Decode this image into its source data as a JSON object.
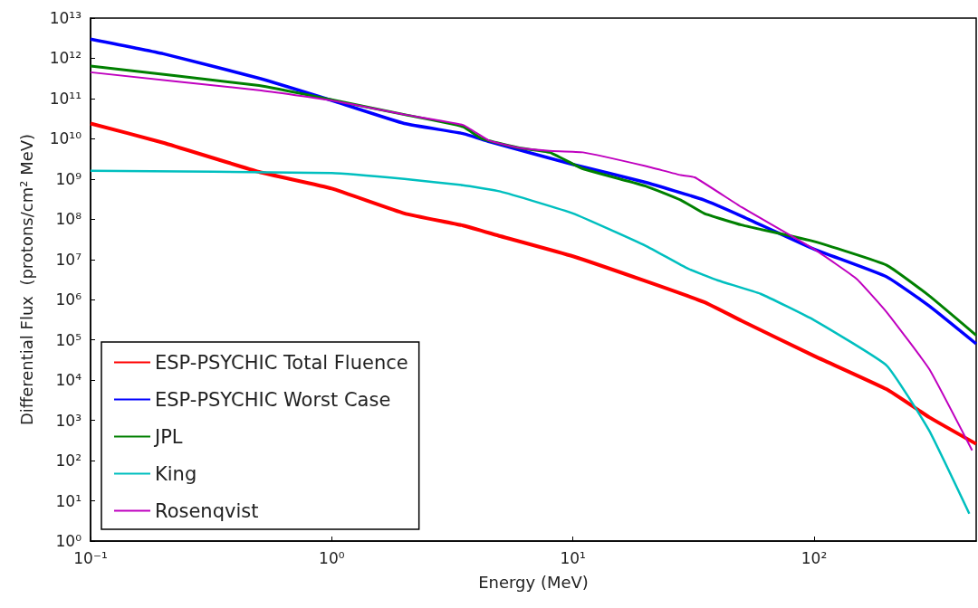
{
  "chart_data": {
    "type": "line",
    "xlabel": "Energy (MeV)",
    "ylabel": "Differential Flux  (protons/cm² MeV)",
    "log": "xy",
    "grid": false,
    "legend": "bottom left",
    "line_style": "solid",
    "xlim": [
      0.1,
      470
    ],
    "xticks": [
      {
        "value": 0.1,
        "label": "10⁻¹"
      },
      {
        "value": 1,
        "label": "10⁰"
      },
      {
        "value": 10,
        "label": "10¹"
      },
      {
        "value": 100,
        "label": "10²"
      }
    ],
    "ylim": [
      1,
      10000000000000.0
    ],
    "yticks": [
      {
        "value": 1,
        "label": "10⁰"
      },
      {
        "value": 10,
        "label": "10¹"
      },
      {
        "value": 100,
        "label": "10²"
      },
      {
        "value": 1000,
        "label": "10³"
      },
      {
        "value": 10000,
        "label": "10⁴"
      },
      {
        "value": 100000,
        "label": "10⁵"
      },
      {
        "value": 1000000,
        "label": "10⁶"
      },
      {
        "value": 10000000,
        "label": "10⁷"
      },
      {
        "value": 100000000,
        "label": "10⁸"
      },
      {
        "value": 1000000000,
        "label": "10⁹"
      },
      {
        "value": 10000000000,
        "label": "10¹⁰"
      },
      {
        "value": 100000000000,
        "label": "10¹¹"
      },
      {
        "value": 1000000000000,
        "label": "10¹²"
      },
      {
        "value": 10000000000000,
        "label": "10¹³"
      }
    ],
    "series": [
      {
        "name": "ESP-PSYCHIC Total Fluence",
        "color": "#ff0000",
        "x": [
          0.1,
          0.2,
          0.5,
          1,
          2,
          3.5,
          5,
          10,
          20,
          35,
          50,
          100,
          200,
          300,
          470
        ],
        "values": [
          24000000000.0,
          8000000000.0,
          1500000000.0,
          580000000.0,
          140000000.0,
          70000000.0,
          38000000.0,
          12000000.0,
          2900000.0,
          870000.0,
          300000.0,
          40000.0,
          5900.0,
          1200.0,
          260.0
        ]
      },
      {
        "name": "ESP-PSYCHIC Worst Case",
        "color": "#0000ff",
        "x": [
          0.1,
          0.2,
          0.5,
          1,
          2,
          3.5,
          4.5,
          10,
          20,
          35,
          50,
          100,
          200,
          300,
          470
        ],
        "values": [
          3000000000000.0,
          1300000000000.0,
          320000000000.0,
          90000000000.0,
          24000000000.0,
          13500000000.0,
          8500000000.0,
          2300000000.0,
          830000000.0,
          300000000.0,
          120000000.0,
          18000000.0,
          3700000.0,
          700000.0,
          80000.0
        ]
      },
      {
        "name": "JPL",
        "color": "#008000",
        "x": [
          0.1,
          0.5,
          1,
          2,
          3.5,
          4.2,
          6,
          8,
          11,
          20,
          28,
          35,
          50,
          100,
          200,
          300,
          470
        ],
        "values": [
          640000000000.0,
          210000000000.0,
          93000000000.0,
          40000000000.0,
          20000000000.0,
          10000000000.0,
          5900000000.0,
          4600000000.0,
          1800000000.0,
          670000000.0,
          300000000.0,
          140000000.0,
          72000000.0,
          28000000.0,
          7200000.0,
          1250000.0,
          130000.0
        ]
      },
      {
        "name": "King",
        "color": "#00bfbf",
        "x": [
          0.1,
          1,
          2,
          3.5,
          5,
          10,
          20,
          30,
          40,
          60,
          100,
          200,
          300,
          440
        ],
        "values": [
          1600000000.0,
          1400000000.0,
          1000000000.0,
          700000000.0,
          490000000.0,
          140000000.0,
          22000000.0,
          5900000.0,
          3000000.0,
          1400000.0,
          310000.0,
          23000.0,
          560.0,
          4.8
        ]
      },
      {
        "name": "Rosenqvist",
        "color": "#bf00bf",
        "x": [
          0.1,
          0.5,
          1,
          2,
          3.5,
          4.5,
          6,
          8,
          11,
          20,
          28,
          32,
          50,
          100,
          150,
          200,
          300,
          452
        ],
        "values": [
          450000000000.0,
          160000000000.0,
          90000000000.0,
          40000000000.0,
          22000000000.0,
          9000000000.0,
          5900000000.0,
          5000000000.0,
          4600000000.0,
          2100000000.0,
          1250000000.0,
          1100000000.0,
          200000000.0,
          18000000.0,
          3300000.0,
          490000.0,
          19000.0,
          180.0
        ]
      }
    ]
  }
}
